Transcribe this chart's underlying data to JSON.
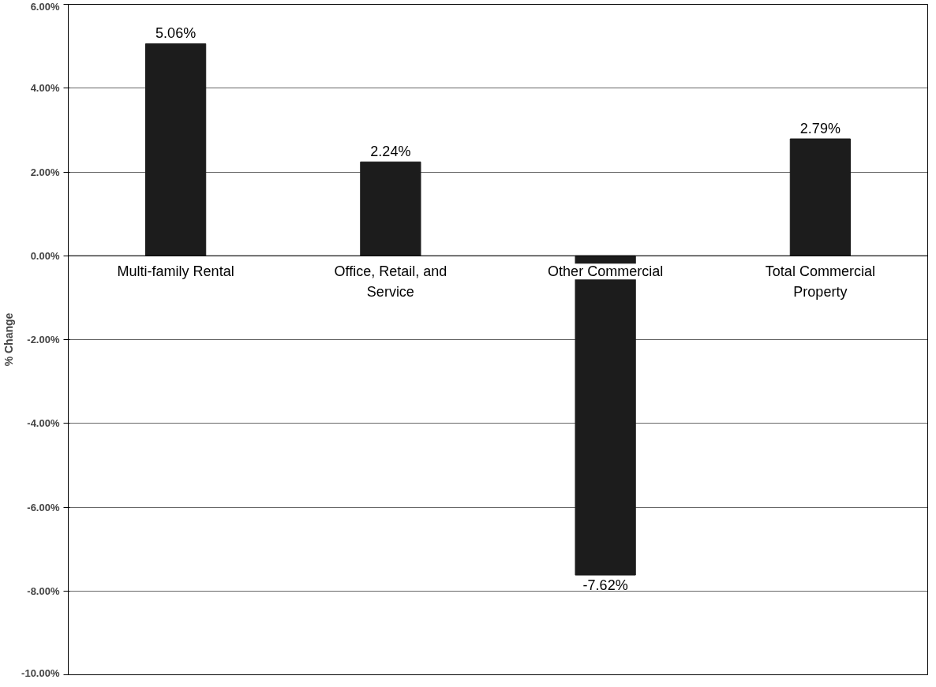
{
  "chart_data": {
    "type": "bar",
    "ylabel": "% Change",
    "categories": [
      "Multi-family Rental",
      "Office, Retail, and Service",
      "Other Commercial",
      "Total Commercial Property"
    ],
    "values": [
      5.06,
      2.24,
      -7.62,
      2.79
    ],
    "value_labels": [
      "5.06%",
      "2.24%",
      "-7.62%",
      "2.79%"
    ],
    "color": "#1c1c1c",
    "ylim": [
      -10,
      6
    ],
    "yticks": [
      {
        "value": -10,
        "label": "-10.00%"
      },
      {
        "value": -8,
        "label": "-8.00%"
      },
      {
        "value": -6,
        "label": "-6.00%"
      },
      {
        "value": -4,
        "label": "-4.00%"
      },
      {
        "value": -2,
        "label": "-2.00%"
      },
      {
        "value": 0,
        "label": "0.00%"
      },
      {
        "value": 2,
        "label": "2.00%"
      },
      {
        "value": 4,
        "label": "4.00%"
      },
      {
        "value": 6,
        "label": "6.00%"
      }
    ],
    "grid": "y"
  }
}
